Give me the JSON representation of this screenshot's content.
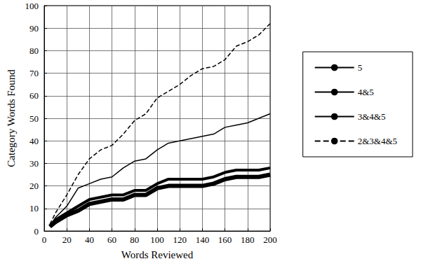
{
  "chart_data": {
    "type": "line",
    "x_label": "Words Reviewed",
    "y_label": "Category Words Found",
    "x": [
      5,
      10,
      20,
      30,
      40,
      50,
      60,
      70,
      80,
      90,
      100,
      110,
      120,
      130,
      140,
      150,
      160,
      170,
      180,
      190,
      200
    ],
    "series": [
      {
        "name": "5",
        "color": "#000000",
        "line_style": "solid",
        "values": [
          2,
          4,
          7,
          9,
          12,
          13,
          14,
          14,
          16,
          16,
          19,
          20,
          20,
          20,
          20,
          21,
          23,
          24,
          24,
          24,
          25
        ]
      },
      {
        "name": "4&5",
        "color": "#000000",
        "line_style": "solid",
        "values": [
          2,
          5,
          8,
          11,
          14,
          15,
          16,
          16,
          18,
          18,
          21,
          23,
          23,
          23,
          23,
          24,
          26,
          27,
          27,
          27,
          28
        ]
      },
      {
        "name": "3&4&5",
        "color": "#000000",
        "line_style": "solid",
        "values": [
          2,
          6,
          11,
          19,
          21,
          23,
          24,
          28,
          31,
          32,
          36,
          39,
          40,
          41,
          42,
          43,
          46,
          47,
          48,
          50,
          52
        ]
      },
      {
        "name": "2&3&4&5",
        "color": "#000000",
        "line_style": "dashed",
        "values": [
          3,
          8,
          16,
          25,
          32,
          36,
          38,
          43,
          49,
          52,
          59,
          62,
          65,
          69,
          72,
          73,
          76,
          82,
          84,
          87,
          92
        ]
      }
    ],
    "xlim": [
      0,
      200
    ],
    "xticks": [
      0,
      20,
      40,
      60,
      80,
      100,
      120,
      140,
      160,
      180,
      200
    ],
    "ylim": [
      0,
      100
    ],
    "yticks": [
      0,
      10,
      20,
      30,
      40,
      50,
      60,
      70,
      80,
      90,
      100
    ],
    "grid": true,
    "legend": "right"
  }
}
